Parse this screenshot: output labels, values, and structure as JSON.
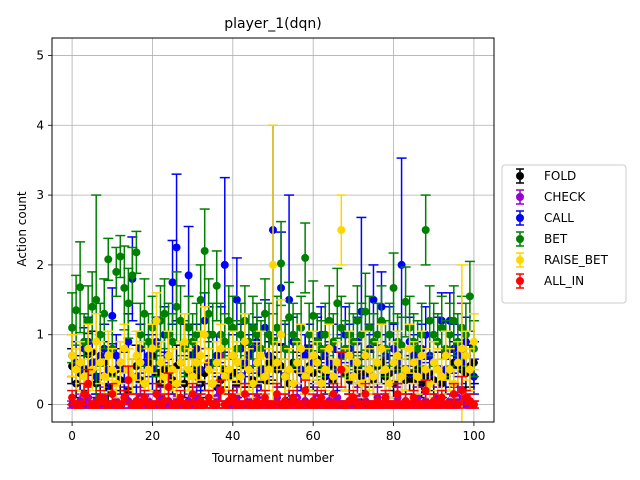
{
  "chart_data": {
    "type": "scatter",
    "title": "player_1(dqn)",
    "xlabel": "Tournament number",
    "ylabel": "Action count",
    "xlim": [
      -5,
      105
    ],
    "ylim": [
      -0.25,
      5.25
    ],
    "xticks": [
      0,
      20,
      40,
      60,
      80,
      100
    ],
    "yticks": [
      0,
      1,
      2,
      3,
      4,
      5
    ],
    "grid": true,
    "legend_position": "center-right",
    "error_bars": true,
    "n_points_per_series": 101,
    "series": [
      {
        "name": "FOLD",
        "color": "#000000",
        "mean": [
          0.55,
          0.3,
          0.45,
          0.5,
          0.72,
          0.75,
          0.3,
          0.4,
          0.6,
          0.25,
          0.45,
          0.5,
          0.35,
          0.5,
          0.2,
          0.4,
          0.55,
          0.35,
          0.3,
          0.6,
          0.7,
          0.45,
          0.3,
          0.5,
          0.4,
          0.35,
          0.55,
          0.6,
          0.3,
          0.45,
          0.5,
          0.4,
          0.3,
          0.45,
          0.5,
          0.3,
          0.25,
          0.35,
          0.5,
          0.4,
          0.45,
          0.3,
          0.4,
          0.55,
          0.5,
          0.35,
          0.3,
          0.45,
          0.35,
          0.6,
          0.65,
          0.5,
          0.55,
          0.4,
          0.3,
          0.6,
          0.5,
          0.45,
          0.7,
          0.55,
          0.45,
          0.65,
          0.5,
          0.4,
          0.55,
          0.35,
          0.5,
          0.0,
          0.45,
          0.35,
          0.6,
          0.5,
          0.4,
          0.45,
          0.5,
          0.35,
          0.55,
          0.6,
          0.4,
          0.45,
          0.3,
          0.5,
          0.4,
          0.35,
          0.45,
          0.35,
          0.5,
          0.3,
          0.4,
          0.45,
          0.35,
          0.5,
          0.3,
          0.4,
          0.5,
          0.6,
          0.55,
          0.5,
          0.45,
          0.55,
          0.6
        ],
        "err": [
          0.25,
          0.2,
          0.25,
          0.3,
          0.3,
          0.3,
          0.2,
          0.25,
          0.3,
          0.2,
          0.25,
          0.3,
          0.2,
          0.25,
          0.15,
          0.25,
          0.3,
          0.2,
          0.2,
          0.3,
          0.3,
          0.25,
          0.2,
          0.25,
          0.25,
          0.2,
          0.3,
          0.3,
          0.2,
          0.25,
          0.25,
          0.25,
          0.2,
          0.25,
          0.3,
          0.2,
          0.2,
          0.2,
          0.25,
          0.25,
          0.25,
          0.2,
          0.25,
          0.3,
          0.25,
          0.2,
          0.2,
          0.25,
          0.2,
          0.3,
          0.3,
          0.25,
          0.3,
          0.25,
          0.2,
          0.3,
          0.25,
          0.25,
          0.3,
          0.3,
          0.25,
          0.3,
          0.25,
          0.25,
          0.3,
          0.2,
          0.25,
          0.05,
          0.25,
          0.2,
          0.3,
          0.25,
          0.25,
          0.25,
          0.25,
          0.2,
          0.3,
          0.3,
          0.25,
          0.25,
          0.2,
          0.25,
          0.25,
          0.2,
          0.25,
          0.2,
          0.25,
          0.2,
          0.25,
          0.25,
          0.2,
          0.25,
          0.2,
          0.25,
          0.25,
          0.3,
          0.3,
          0.25,
          0.25,
          0.3,
          0.3
        ]
      },
      {
        "name": "CHECK",
        "color": "#9400d3",
        "mean": [
          0.0,
          0.0,
          0.05,
          0.0,
          0.1,
          0.0,
          0.05,
          0.0,
          0.1,
          0.0,
          0.0,
          0.05,
          0.0,
          0.1,
          0.05,
          0.0,
          0.0,
          0.1,
          0.0,
          0.05,
          0.0,
          0.0,
          0.1,
          0.0,
          0.05,
          0.0,
          0.1,
          0.0,
          0.0,
          0.05,
          0.0,
          0.1,
          0.05,
          0.0,
          0.6,
          0.0,
          0.1,
          0.7,
          0.0,
          0.0,
          0.05,
          0.1,
          0.0,
          0.0,
          0.05,
          0.0,
          0.1,
          0.0,
          0.05,
          0.0,
          0.0,
          0.1,
          0.0,
          0.05,
          0.0,
          0.0,
          0.1,
          0.0,
          0.05,
          0.0,
          0.0,
          0.1,
          0.0,
          0.0,
          0.05,
          0.0,
          0.1,
          0.0,
          0.0,
          0.05,
          0.0,
          0.1,
          0.0,
          0.05,
          0.0,
          0.0,
          0.1,
          0.0,
          0.05,
          0.0,
          0.0,
          0.1,
          0.0,
          0.05,
          0.0,
          0.0,
          0.1,
          0.0,
          0.05,
          0.0,
          0.0,
          0.1,
          0.0,
          0.75,
          0.05,
          0.0,
          0.1,
          1.1,
          0.0,
          0.05,
          0.0
        ],
        "err": [
          0.05,
          0.05,
          0.1,
          0.05,
          0.15,
          0.05,
          0.1,
          0.05,
          0.15,
          0.05,
          0.05,
          0.1,
          0.05,
          0.15,
          0.1,
          0.05,
          0.05,
          0.15,
          0.05,
          0.1,
          0.05,
          0.05,
          0.15,
          0.05,
          0.1,
          0.05,
          0.15,
          0.05,
          0.05,
          0.1,
          0.05,
          0.15,
          0.1,
          0.05,
          0.3,
          0.05,
          0.15,
          0.3,
          0.05,
          0.05,
          0.1,
          0.15,
          0.05,
          0.05,
          0.1,
          0.05,
          0.15,
          0.05,
          0.1,
          0.05,
          0.05,
          0.15,
          0.05,
          0.1,
          0.05,
          0.05,
          0.15,
          0.05,
          0.1,
          0.05,
          0.05,
          0.15,
          0.05,
          0.05,
          0.1,
          0.05,
          0.15,
          0.05,
          0.05,
          0.1,
          0.05,
          0.15,
          0.05,
          0.1,
          0.05,
          0.05,
          0.15,
          0.05,
          0.1,
          0.05,
          0.05,
          0.15,
          0.05,
          0.1,
          0.05,
          0.05,
          0.15,
          0.05,
          0.1,
          0.05,
          0.05,
          0.15,
          0.05,
          0.3,
          0.1,
          0.05,
          0.15,
          0.35,
          0.05,
          0.1,
          0.05
        ]
      },
      {
        "name": "CALL",
        "color": "#0000ff",
        "mean": [
          0.7,
          0.6,
          0.5,
          0.8,
          0.9,
          0.6,
          0.4,
          0.7,
          0.8,
          0.5,
          1.27,
          0.7,
          0.6,
          0.5,
          0.9,
          1.8,
          0.4,
          0.8,
          0.6,
          0.7,
          0.5,
          0.9,
          0.6,
          1.0,
          0.7,
          1.75,
          2.25,
          0.6,
          0.8,
          1.85,
          0.7,
          0.8,
          0.5,
          1.2,
          1.0,
          0.6,
          0.7,
          1.0,
          2.0,
          0.5,
          0.7,
          1.5,
          0.8,
          0.6,
          0.7,
          0.8,
          0.9,
          0.5,
          1.1,
          0.7,
          2.5,
          0.6,
          1.67,
          0.8,
          1.5,
          0.9,
          0.6,
          0.5,
          0.7,
          0.8,
          0.6,
          0.9,
          1.0,
          0.7,
          0.6,
          0.8,
          0.5,
          0.7,
          1.0,
          0.8,
          0.6,
          0.9,
          1.33,
          0.7,
          0.8,
          1.5,
          0.6,
          1.4,
          0.7,
          1.0,
          0.8,
          0.6,
          2.0,
          0.5,
          0.9,
          0.7,
          0.6,
          0.8,
          1.0,
          0.7,
          0.6,
          0.9,
          1.2,
          0.5,
          1.2,
          0.8,
          0.7,
          0.6,
          0.9,
          0.5,
          0.4
        ],
        "err": [
          0.3,
          0.3,
          0.3,
          0.3,
          0.35,
          0.3,
          0.25,
          0.3,
          0.35,
          0.3,
          0.4,
          0.3,
          0.3,
          0.3,
          0.4,
          0.6,
          0.25,
          0.35,
          0.3,
          0.3,
          0.3,
          0.35,
          0.3,
          0.4,
          0.3,
          0.6,
          1.05,
          0.3,
          0.35,
          0.7,
          0.3,
          0.35,
          0.3,
          0.4,
          0.4,
          0.3,
          0.3,
          0.4,
          1.25,
          0.3,
          0.3,
          0.6,
          0.35,
          0.3,
          0.3,
          0.35,
          0.35,
          0.3,
          0.4,
          0.3,
          1.5,
          0.3,
          0.8,
          0.35,
          1.5,
          0.35,
          0.3,
          0.3,
          0.3,
          0.35,
          0.3,
          0.35,
          0.4,
          0.3,
          0.3,
          0.35,
          0.3,
          0.3,
          0.4,
          0.35,
          0.3,
          0.35,
          1.35,
          0.3,
          0.35,
          0.5,
          0.3,
          0.5,
          0.3,
          0.4,
          0.35,
          0.3,
          1.53,
          0.3,
          0.35,
          0.3,
          0.3,
          0.35,
          0.4,
          0.3,
          0.3,
          0.35,
          0.4,
          0.3,
          0.4,
          0.35,
          0.3,
          0.3,
          0.35,
          0.3,
          0.25
        ]
      },
      {
        "name": "BET",
        "color": "#008000",
        "mean": [
          1.1,
          1.35,
          1.68,
          0.9,
          1.2,
          1.4,
          1.5,
          1.0,
          1.3,
          2.08,
          0.8,
          1.9,
          2.12,
          1.67,
          1.45,
          1.85,
          2.18,
          1.0,
          1.3,
          0.9,
          1.1,
          0.8,
          1.2,
          1.3,
          1.0,
          0.9,
          1.4,
          1.2,
          0.8,
          1.1,
          0.9,
          1.0,
          1.5,
          2.2,
          1.3,
          1.0,
          1.7,
          1.0,
          0.9,
          1.2,
          1.1,
          0.8,
          1.0,
          1.2,
          0.9,
          1.1,
          1.0,
          0.8,
          1.3,
          1.0,
          0.9,
          1.1,
          2.02,
          0.8,
          1.25,
          1.0,
          0.9,
          1.1,
          2.1,
          1.0,
          1.27,
          0.9,
          0.8,
          1.0,
          1.2,
          0.9,
          1.45,
          1.1,
          0.8,
          1.0,
          0.9,
          1.2,
          1.0,
          1.33,
          1.1,
          0.9,
          1.0,
          1.2,
          0.8,
          1.0,
          1.67,
          0.9,
          0.85,
          1.47,
          1.1,
          0.9,
          0.8,
          1.0,
          2.5,
          1.2,
          1.0,
          0.9,
          1.1,
          0.8,
          1.0,
          1.2,
          0.9,
          1.1,
          1.0,
          1.55,
          0.8
        ],
        "err": [
          0.5,
          0.5,
          0.65,
          0.4,
          0.5,
          0.5,
          1.5,
          0.45,
          0.5,
          0.3,
          0.4,
          0.35,
          0.3,
          0.6,
          0.5,
          0.4,
          0.3,
          0.45,
          0.5,
          0.4,
          0.45,
          0.4,
          0.5,
          0.5,
          0.45,
          0.4,
          0.5,
          0.5,
          0.4,
          0.45,
          0.4,
          0.45,
          0.5,
          0.6,
          0.5,
          0.45,
          0.5,
          0.45,
          0.4,
          0.5,
          0.45,
          0.4,
          0.45,
          0.5,
          0.4,
          0.45,
          0.45,
          0.4,
          0.5,
          0.45,
          0.4,
          0.45,
          0.6,
          0.4,
          0.5,
          0.45,
          0.4,
          0.45,
          0.5,
          0.45,
          0.5,
          0.4,
          0.4,
          0.45,
          0.5,
          0.4,
          0.5,
          0.45,
          0.4,
          0.45,
          0.4,
          0.5,
          0.45,
          0.55,
          0.45,
          0.4,
          0.45,
          0.5,
          0.4,
          0.45,
          0.5,
          0.4,
          0.4,
          0.5,
          0.45,
          0.4,
          0.4,
          0.45,
          0.5,
          0.5,
          0.45,
          0.4,
          0.45,
          0.4,
          0.45,
          0.5,
          0.4,
          0.45,
          0.45,
          0.5,
          0.4
        ]
      },
      {
        "name": "RAISE_BET",
        "color": "#ffd700",
        "mean": [
          0.7,
          0.5,
          0.6,
          0.4,
          0.8,
          0.5,
          0.9,
          0.6,
          0.4,
          0.7,
          0.5,
          0.3,
          0.6,
          0.8,
          0.5,
          0.4,
          0.7,
          0.6,
          0.3,
          0.5,
          0.8,
          1.2,
          0.6,
          0.4,
          0.7,
          0.5,
          0.3,
          0.6,
          0.9,
          0.5,
          0.4,
          0.6,
          0.7,
          1.0,
          0.5,
          0.3,
          0.6,
          0.8,
          0.4,
          0.5,
          0.7,
          0.6,
          0.4,
          0.9,
          0.5,
          0.3,
          0.6,
          0.7,
          0.4,
          0.5,
          2.0,
          0.6,
          1.0,
          0.4,
          0.5,
          0.3,
          0.6,
          0.8,
          0.4,
          0.5,
          0.7,
          0.6,
          0.3,
          0.5,
          0.8,
          0.4,
          0.6,
          2.5,
          0.5,
          0.7,
          0.4,
          0.6,
          0.3,
          0.7,
          0.5,
          0.4,
          0.6,
          0.8,
          0.5,
          0.3,
          0.6,
          0.7,
          0.4,
          0.5,
          0.8,
          0.6,
          0.4,
          0.7,
          0.5,
          0.3,
          0.6,
          0.5,
          0.4,
          0.7,
          0.5,
          0.3,
          0.6,
          0.8,
          0.7,
          0.5,
          0.9
        ],
        "err": [
          0.3,
          0.3,
          0.3,
          0.25,
          0.35,
          0.3,
          0.4,
          0.3,
          0.25,
          0.35,
          0.3,
          0.2,
          0.3,
          0.35,
          0.3,
          0.25,
          0.35,
          0.3,
          0.2,
          0.3,
          0.35,
          0.4,
          0.3,
          0.25,
          0.35,
          0.3,
          0.2,
          0.3,
          0.4,
          0.3,
          0.25,
          0.3,
          0.35,
          0.4,
          0.3,
          0.2,
          0.3,
          0.35,
          0.25,
          0.3,
          0.35,
          0.3,
          0.25,
          0.4,
          0.3,
          0.2,
          0.3,
          0.35,
          0.25,
          0.3,
          2.0,
          0.3,
          0.5,
          0.25,
          0.3,
          0.2,
          0.3,
          0.35,
          0.25,
          0.3,
          0.35,
          0.3,
          0.2,
          0.3,
          0.35,
          0.25,
          0.3,
          0.5,
          0.3,
          0.35,
          0.25,
          0.3,
          0.2,
          0.35,
          0.3,
          0.25,
          0.3,
          0.35,
          0.3,
          0.2,
          0.3,
          0.35,
          0.25,
          0.3,
          0.35,
          0.3,
          0.25,
          0.35,
          0.3,
          0.2,
          0.3,
          0.3,
          0.25,
          0.35,
          0.3,
          0.2,
          0.3,
          1.2,
          0.35,
          0.3,
          0.4
        ]
      },
      {
        "name": "ALL_IN",
        "color": "#ff0000",
        "mean": [
          0.1,
          0.0,
          0.0,
          0.15,
          0.3,
          0.0,
          0.0,
          0.1,
          0.05,
          0.0,
          0.15,
          0.0,
          0.0,
          0.1,
          0.35,
          0.0,
          0.05,
          0.0,
          0.1,
          0.0,
          0.0,
          0.15,
          0.0,
          0.05,
          0.25,
          0.0,
          0.0,
          0.1,
          0.0,
          0.0,
          0.15,
          0.0,
          0.05,
          0.0,
          0.1,
          0.0,
          0.0,
          0.2,
          0.0,
          0.05,
          0.1,
          0.0,
          0.0,
          0.15,
          0.0,
          0.0,
          0.05,
          0.0,
          0.1,
          0.0,
          0.0,
          0.15,
          0.0,
          0.05,
          0.0,
          0.1,
          0.0,
          0.0,
          0.2,
          0.0,
          0.05,
          0.0,
          0.1,
          0.0,
          0.0,
          0.15,
          0.0,
          0.5,
          0.0,
          0.05,
          0.1,
          0.0,
          0.0,
          0.15,
          0.0,
          0.0,
          0.05,
          0.0,
          0.1,
          0.0,
          0.0,
          0.15,
          0.0,
          0.05,
          0.0,
          0.1,
          0.0,
          0.0,
          0.2,
          0.0,
          0.05,
          0.0,
          0.1,
          0.0,
          0.0,
          0.15,
          0.0,
          0.2,
          0.1,
          0.05,
          0.0
        ],
        "err": [
          0.1,
          0.05,
          0.05,
          0.15,
          0.2,
          0.05,
          0.05,
          0.1,
          0.1,
          0.05,
          0.15,
          0.05,
          0.05,
          0.1,
          0.2,
          0.05,
          0.1,
          0.05,
          0.1,
          0.05,
          0.05,
          0.15,
          0.05,
          0.1,
          0.2,
          0.05,
          0.05,
          0.1,
          0.05,
          0.05,
          0.15,
          0.05,
          0.1,
          0.05,
          0.1,
          0.05,
          0.05,
          0.15,
          0.05,
          0.1,
          0.1,
          0.05,
          0.05,
          0.15,
          0.05,
          0.05,
          0.1,
          0.05,
          0.1,
          0.05,
          0.05,
          0.15,
          0.05,
          0.1,
          0.05,
          0.1,
          0.05,
          0.05,
          0.15,
          0.05,
          0.1,
          0.05,
          0.1,
          0.05,
          0.05,
          0.15,
          0.05,
          0.25,
          0.05,
          0.1,
          0.1,
          0.05,
          0.05,
          0.15,
          0.05,
          0.05,
          0.1,
          0.05,
          0.1,
          0.05,
          0.05,
          0.15,
          0.05,
          0.1,
          0.05,
          0.1,
          0.05,
          0.05,
          0.15,
          0.05,
          0.1,
          0.05,
          0.1,
          0.05,
          0.05,
          0.15,
          0.05,
          0.2,
          0.1,
          0.1,
          0.05
        ]
      }
    ]
  }
}
